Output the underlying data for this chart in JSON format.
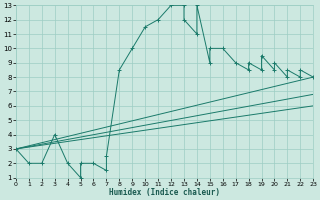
{
  "xlabel": "Humidex (Indice chaleur)",
  "bg_color": "#cce8e0",
  "grid_color": "#9ecec4",
  "line_color": "#1a7a6a",
  "xlim": [
    0,
    23
  ],
  "ylim": [
    1,
    13
  ],
  "xticks": [
    0,
    1,
    2,
    3,
    4,
    5,
    6,
    7,
    8,
    9,
    10,
    11,
    12,
    13,
    14,
    15,
    16,
    17,
    18,
    19,
    20,
    21,
    22,
    23
  ],
  "yticks": [
    1,
    2,
    3,
    4,
    5,
    6,
    7,
    8,
    9,
    10,
    11,
    12,
    13
  ],
  "line1_x": [
    0,
    1,
    2,
    3,
    4,
    5,
    5,
    6,
    7,
    7,
    8,
    9,
    10,
    11,
    12,
    13,
    13,
    14,
    14,
    15,
    15,
    16,
    17,
    18,
    18,
    19,
    19,
    20,
    20,
    21,
    21,
    22,
    22,
    23
  ],
  "line1_y": [
    3,
    2,
    2,
    4,
    2,
    1,
    2,
    2,
    1.5,
    2.5,
    8.5,
    10,
    11.5,
    12,
    13,
    13,
    12,
    11,
    13,
    9,
    10,
    10,
    9,
    8.5,
    9,
    8.5,
    9.5,
    8.5,
    9,
    8,
    8.5,
    8,
    8.5,
    8
  ],
  "line2_x": [
    0,
    23
  ],
  "line2_y": [
    3,
    8
  ],
  "line3_x": [
    0,
    23
  ],
  "line3_y": [
    3,
    6.8
  ],
  "line4_x": [
    0,
    23
  ],
  "line4_y": [
    3,
    6.0
  ]
}
